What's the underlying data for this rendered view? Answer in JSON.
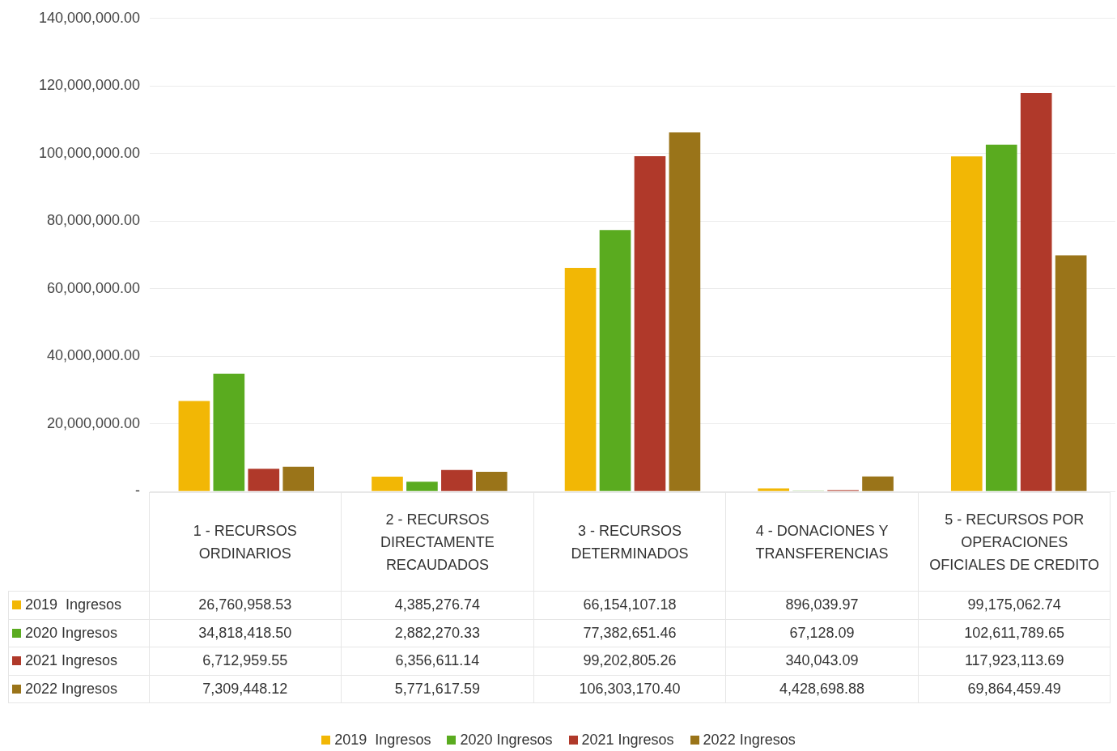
{
  "chart_data": {
    "type": "bar",
    "categories": [
      "1 - RECURSOS ORDINARIOS",
      "2 - RECURSOS DIRECTAMENTE RECAUDADOS",
      "3 - RECURSOS DETERMINADOS",
      "4 - DONACIONES Y TRANSFERENCIAS",
      "5 - RECURSOS POR OPERACIONES OFICIALES DE CREDITO"
    ],
    "series": [
      {
        "name": "2019  Ingresos",
        "color": "#f2b705",
        "values": [
          26760958.53,
          4385276.74,
          66154107.18,
          896039.97,
          99175062.74
        ],
        "value_labels": [
          "26,760,958.53",
          "4,385,276.74",
          "66,154,107.18",
          "896,039.97",
          "99,175,062.74"
        ]
      },
      {
        "name": "2020 Ingresos",
        "color": "#5aab1f",
        "values": [
          34818418.5,
          2882270.33,
          77382651.46,
          67128.09,
          102611789.65
        ],
        "value_labels": [
          "34,818,418.50",
          "2,882,270.33",
          "77,382,651.46",
          "67,128.09",
          "102,611,789.65"
        ]
      },
      {
        "name": "2021 Ingresos",
        "color": "#b0392a",
        "values": [
          6712959.55,
          6356611.14,
          99202805.26,
          340043.09,
          117923113.69
        ],
        "value_labels": [
          "6,712,959.55",
          "6,356,611.14",
          "99,202,805.26",
          "340,043.09",
          "117,923,113.69"
        ]
      },
      {
        "name": "2022 Ingresos",
        "color": "#9a7419",
        "values": [
          7309448.12,
          5771617.59,
          106303170.4,
          4428698.88,
          69864459.49
        ],
        "value_labels": [
          "7,309,448.12",
          "5,771,617.59",
          "106,303,170.40",
          "4,428,698.88",
          "69,864,459.49"
        ]
      }
    ],
    "ylim": [
      0,
      140000000
    ],
    "yticks": [
      {
        "value": 0,
        "label": "-"
      },
      {
        "value": 20000000,
        "label": "20,000,000.00"
      },
      {
        "value": 40000000,
        "label": "40,000,000.00"
      },
      {
        "value": 60000000,
        "label": "60,000,000.00"
      },
      {
        "value": 80000000,
        "label": "80,000,000.00"
      },
      {
        "value": 100000000,
        "label": "100,000,000.00"
      },
      {
        "value": 120000000,
        "label": "120,000,000.00"
      },
      {
        "value": 140000000,
        "label": "140,000,000.00"
      }
    ],
    "grid": "y",
    "legend": "bottom"
  }
}
